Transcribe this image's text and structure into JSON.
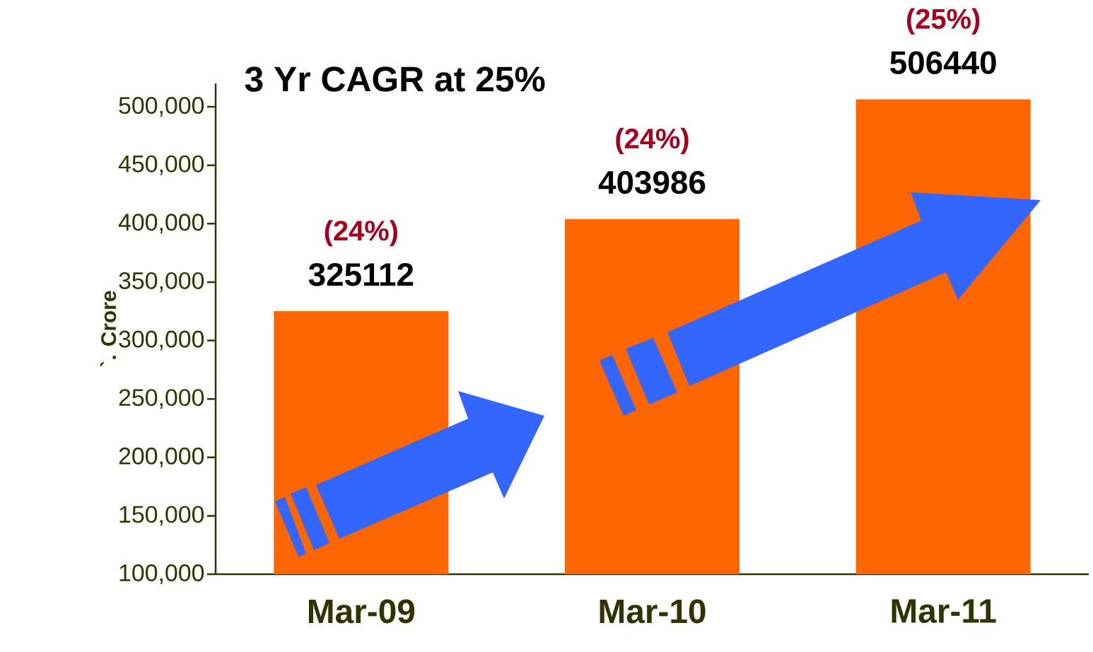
{
  "chart_data": {
    "type": "bar",
    "title": "3 Yr CAGR at 25%",
    "ylabel": "`. Crore",
    "categories": [
      "Mar-09",
      "Mar-10",
      "Mar-11"
    ],
    "values": [
      325112,
      403986,
      506440
    ],
    "color": "#ff6600",
    "data_labels": true,
    "ylim": [
      100000,
      520000
    ],
    "yticks": [
      {
        "value": 100000,
        "label": "100,000"
      },
      {
        "value": 150000,
        "label": "150,000"
      },
      {
        "value": 200000,
        "label": "200,000"
      },
      {
        "value": 250000,
        "label": "250,000"
      },
      {
        "value": 300000,
        "label": "300,000"
      },
      {
        "value": 350000,
        "label": "350,000"
      },
      {
        "value": 400000,
        "label": "400,000"
      },
      {
        "value": 450000,
        "label": "450,000"
      },
      {
        "value": 500000,
        "label": "500,000"
      }
    ],
    "annotations": [
      {
        "text": "(24%)",
        "x": "Mar-09",
        "y": 325112
      },
      {
        "text": "(24%)",
        "x": "Mar-10",
        "y": 403986
      },
      {
        "text": "(25%)",
        "x": "Mar-11",
        "y": 506440
      }
    ],
    "grid": false
  }
}
